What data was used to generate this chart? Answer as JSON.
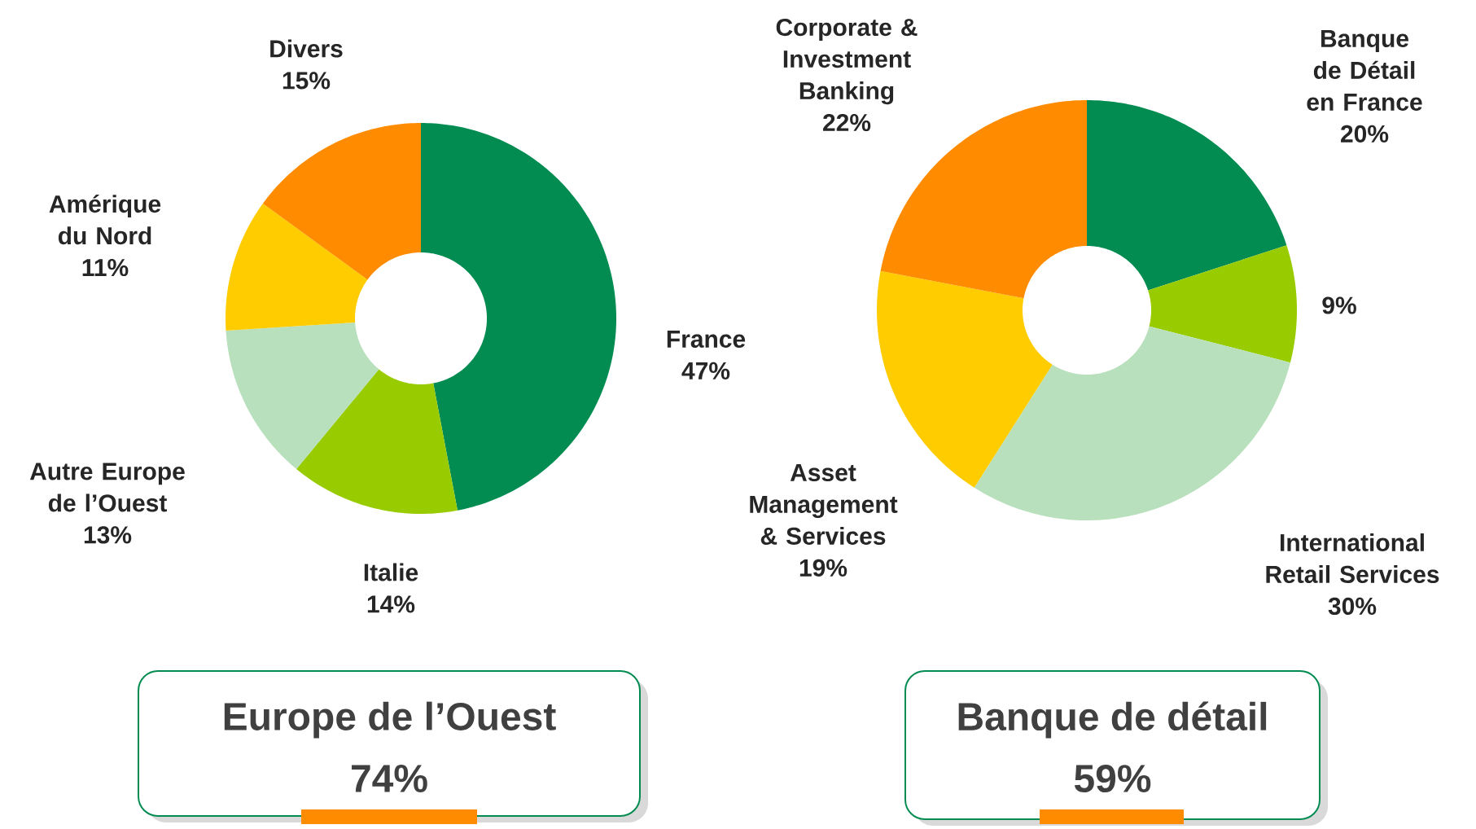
{
  "chart_data": [
    {
      "type": "donut",
      "categories": [
        "France",
        "Italie",
        "Autre Europe de l’Ouest",
        "Amérique du Nord",
        "Divers"
      ],
      "values": [
        47,
        14,
        13,
        11,
        15
      ],
      "value_labels": [
        "47%",
        "14%",
        "13%",
        "11%",
        "15%"
      ],
      "colors": [
        "#038c52",
        "#99cc00",
        "#b8e0bc",
        "#ffcc00",
        "#ff8c00"
      ],
      "annotations": [
        "Europe de l’Ouest",
        "74%"
      ]
    },
    {
      "type": "donut",
      "categories": [
        "Banque de Détail en France",
        null,
        "International Retail Services",
        "Asset Management & Services",
        "Corporate & Investment Banking"
      ],
      "values": [
        20,
        9,
        30,
        19,
        22
      ],
      "value_labels": [
        "20%",
        "9%",
        "30%",
        "19%",
        "22%"
      ],
      "colors": [
        "#038c52",
        "#99cc00",
        "#b8e0bc",
        "#ffcc00",
        "#ff8c00"
      ],
      "annotations": [
        "Banque de détail",
        "59%"
      ]
    }
  ]
}
